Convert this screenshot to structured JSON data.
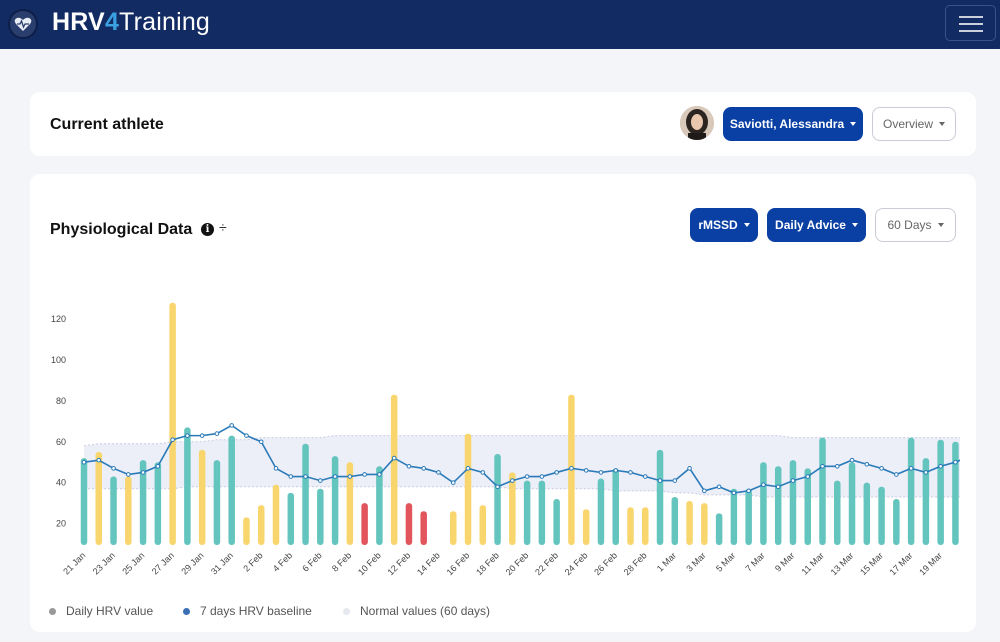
{
  "app": {
    "brand_bold": "HRV",
    "brand_num": "4",
    "brand_rest": "Training"
  },
  "athlete_card": {
    "title": "Current athlete",
    "athlete_name": "Saviotti, Alessandra",
    "view": "Overview"
  },
  "physio_card": {
    "title": "Physiological Data",
    "metric": "rMSSD",
    "advice": "Daily Advice",
    "range": "60 Days"
  },
  "icons": {
    "logo": "heart-logo-icon",
    "menu": "hamburger-menu-icon",
    "info": "info-icon",
    "sort": "sort-icon"
  },
  "colors": {
    "green": "#63c5bd",
    "yellow": "#f8d66d",
    "red": "#e3555d",
    "baseline": "#2a7ab8",
    "band": "#e5e8f5",
    "primary": "#0a3fa3",
    "nav": "#132b63"
  },
  "legend": {
    "daily": "Daily HRV value",
    "baseline": "7 days HRV baseline",
    "normal": "Normal values (60 days)"
  },
  "chart_data": {
    "type": "bar",
    "yticks": [
      20,
      40,
      60,
      80,
      100,
      120
    ],
    "ylim": [
      10,
      130
    ],
    "xtick_labels": [
      "21 Jan",
      "23 Jan",
      "25 Jan",
      "27 Jan",
      "29 Jan",
      "31 Jan",
      "2 Feb",
      "4 Feb",
      "6 Feb",
      "8 Feb",
      "10 Feb",
      "12 Feb",
      "14 Feb",
      "16 Feb",
      "18 Feb",
      "20 Feb",
      "22 Feb",
      "24 Feb",
      "26 Feb",
      "28 Feb",
      "1 Mar",
      "3 Mar",
      "5 Mar",
      "7 Mar",
      "9 Mar",
      "11 Mar",
      "13 Mar",
      "15 Mar",
      "17 Mar",
      "19 Mar"
    ],
    "series": [
      {
        "name": "Daily HRV value",
        "values": [
          52,
          55,
          43,
          43,
          51,
          50,
          128,
          67,
          56,
          51,
          63,
          23,
          29,
          39,
          35,
          59,
          37,
          53,
          50,
          30,
          48,
          83,
          30,
          26,
          null,
          26,
          64,
          29,
          54,
          45,
          41,
          41,
          32,
          83,
          27,
          42,
          47,
          28,
          28,
          56,
          33,
          31,
          30,
          25,
          37,
          37,
          50,
          48,
          51,
          47,
          62,
          41,
          50,
          40,
          38,
          32,
          62,
          52,
          61,
          60,
          63
        ],
        "colors": [
          "g",
          "y",
          "g",
          "y",
          "g",
          "g",
          "y",
          "g",
          "y",
          "g",
          "g",
          "y",
          "y",
          "y",
          "g",
          "g",
          "g",
          "g",
          "y",
          "r",
          "g",
          "y",
          "r",
          "r",
          null,
          "y",
          "y",
          "y",
          "g",
          "y",
          "g",
          "g",
          "g",
          "y",
          "y",
          "g",
          "g",
          "y",
          "y",
          "g",
          "g",
          "y",
          "y",
          "g",
          "g",
          "g",
          "g",
          "g",
          "g",
          "g",
          "g",
          "g",
          "g",
          "g",
          "g",
          "g",
          "g",
          "g",
          "g",
          "g",
          "g"
        ]
      },
      {
        "name": "7 days HRV baseline",
        "values": [
          50,
          51,
          47,
          44,
          45,
          48,
          61,
          63,
          63,
          64,
          68,
          63,
          60,
          47,
          43,
          43,
          41,
          43,
          43,
          44,
          44,
          52,
          48,
          47,
          45,
          40,
          47,
          45,
          38,
          41,
          43,
          43,
          45,
          47,
          46,
          45,
          46,
          45,
          43,
          41,
          41,
          47,
          36,
          38,
          35,
          36,
          39,
          38,
          41,
          43,
          48,
          48,
          51,
          49,
          47,
          44,
          47,
          45,
          48,
          50,
          53
        ]
      }
    ],
    "normal_band": {
      "upper": [
        58,
        59,
        59,
        59,
        59,
        59,
        60,
        60,
        60,
        61,
        61,
        61,
        62,
        62,
        62,
        62,
        62,
        63,
        63,
        63,
        63,
        63,
        63,
        63,
        63,
        63,
        63,
        63,
        63,
        63,
        63,
        63,
        63,
        63,
        63,
        63,
        63,
        63,
        63,
        63,
        63,
        63,
        63,
        63,
        63,
        63,
        63,
        63,
        62,
        62,
        62,
        62,
        62,
        62,
        62,
        62,
        62,
        62,
        62,
        62,
        62
      ],
      "lower": [
        37,
        37,
        37,
        37,
        37,
        37,
        37,
        38,
        38,
        38,
        38,
        38,
        38,
        38,
        38,
        38,
        38,
        38,
        38,
        38,
        38,
        38,
        38,
        38,
        38,
        38,
        38,
        38,
        38,
        37,
        37,
        37,
        37,
        37,
        37,
        37,
        36,
        36,
        36,
        36,
        35,
        35,
        34,
        34,
        34,
        34,
        33,
        33,
        33,
        33,
        33,
        33,
        33,
        33,
        33,
        33,
        33,
        33,
        33,
        33,
        33
      ]
    }
  }
}
